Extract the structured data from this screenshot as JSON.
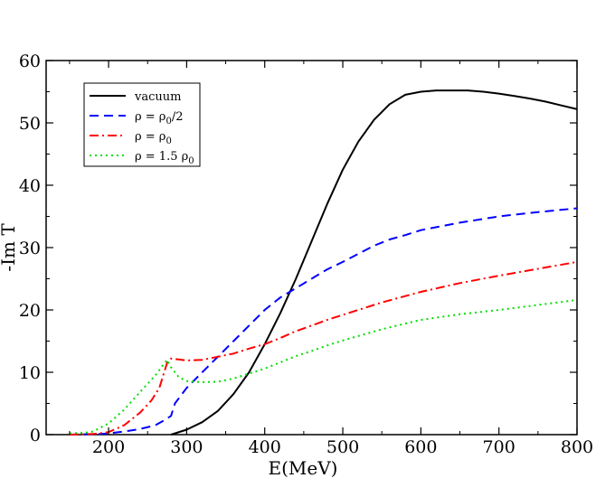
{
  "chart_data": {
    "type": "line",
    "title": "",
    "xlabel": "E(MeV)",
    "ylabel": "-Im T",
    "xlim": [
      120,
      800
    ],
    "ylim": [
      0,
      60
    ],
    "xticks": [
      200,
      300,
      400,
      500,
      600,
      700,
      800
    ],
    "yticks": [
      0,
      10,
      20,
      30,
      40,
      50,
      60
    ],
    "grid": false,
    "legend_position": "top-left",
    "series": [
      {
        "name": "vacuum",
        "color": "#000000",
        "dash": "solid",
        "x": [
          280,
          300,
          320,
          340,
          360,
          380,
          400,
          420,
          440,
          460,
          480,
          500,
          520,
          540,
          560,
          580,
          600,
          620,
          640,
          660,
          680,
          700,
          720,
          740,
          760,
          780,
          800
        ],
        "y": [
          0,
          0.8,
          2.0,
          3.8,
          6.5,
          10.0,
          14.5,
          19.5,
          25.0,
          31.0,
          37.0,
          42.5,
          47.0,
          50.5,
          53.0,
          54.5,
          55.0,
          55.2,
          55.2,
          55.2,
          55.0,
          54.7,
          54.3,
          53.9,
          53.4,
          52.8,
          52.2
        ]
      },
      {
        "name": "ρ = ρ0/2",
        "color": "#0000ff",
        "dash": "dashed",
        "x": [
          150,
          190,
          200,
          220,
          240,
          260,
          270,
          280,
          285,
          300,
          320,
          340,
          360,
          380,
          400,
          420,
          440,
          460,
          480,
          500,
          520,
          540,
          560,
          580,
          600,
          650,
          700,
          750,
          800
        ],
        "y": [
          0,
          0.1,
          0.2,
          0.5,
          0.9,
          1.5,
          2.2,
          3.0,
          5.0,
          7.5,
          10.0,
          12.5,
          15.0,
          17.5,
          20.0,
          22.0,
          23.5,
          25.0,
          26.5,
          27.7,
          29.0,
          30.3,
          31.3,
          32.0,
          32.8,
          34.0,
          35.0,
          35.7,
          36.3
        ]
      },
      {
        "name": "ρ = ρ0",
        "color": "#ff0000",
        "dash": "dashdot",
        "x": [
          150,
          180,
          200,
          220,
          240,
          255,
          265,
          270,
          275,
          280,
          300,
          320,
          340,
          360,
          380,
          400,
          420,
          440,
          460,
          480,
          500,
          550,
          600,
          650,
          700,
          750,
          800
        ],
        "y": [
          0,
          0.1,
          0.4,
          1.5,
          3.5,
          5.5,
          7.5,
          9.5,
          11.5,
          12.2,
          11.9,
          12.0,
          12.5,
          13.0,
          13.8,
          14.5,
          15.5,
          16.6,
          17.5,
          18.4,
          19.2,
          21.2,
          22.9,
          24.3,
          25.5,
          26.6,
          27.7
        ]
      },
      {
        "name": "ρ = 1.5 ρ0",
        "color": "#00dd00",
        "dash": "dotted",
        "x": [
          150,
          170,
          180,
          200,
          220,
          240,
          260,
          270,
          275,
          280,
          290,
          300,
          320,
          340,
          360,
          380,
          400,
          420,
          440,
          460,
          480,
          500,
          550,
          600,
          650,
          700,
          750,
          800
        ],
        "y": [
          0.2,
          0.3,
          0.5,
          1.8,
          4.0,
          6.8,
          9.5,
          11.2,
          12.0,
          10.8,
          9.2,
          8.6,
          8.4,
          8.5,
          9.0,
          9.8,
          10.6,
          11.6,
          12.6,
          13.4,
          14.3,
          15.1,
          16.9,
          18.4,
          19.3,
          20.0,
          20.8,
          21.6
        ]
      }
    ]
  },
  "legend": {
    "items": [
      {
        "prefix": "vacuum",
        "sub": "",
        "suffix": ""
      },
      {
        "prefix": "ρ = ρ",
        "sub": "0",
        "suffix": "/2"
      },
      {
        "prefix": "ρ = ρ",
        "sub": "0",
        "suffix": ""
      },
      {
        "prefix": "ρ = 1.5 ρ",
        "sub": "0",
        "suffix": ""
      }
    ]
  },
  "style": {
    "axis_color": "#000000",
    "background": "#ffffff"
  }
}
